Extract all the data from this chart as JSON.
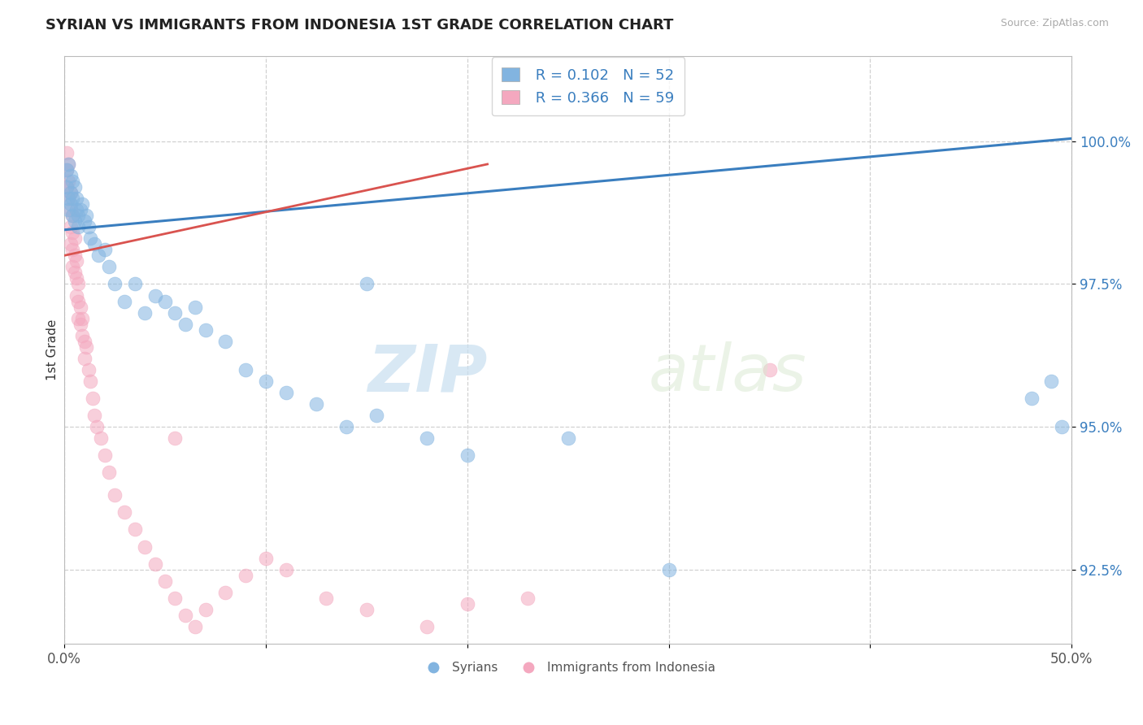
{
  "title": "SYRIAN VS IMMIGRANTS FROM INDONESIA 1ST GRADE CORRELATION CHART",
  "source": "Source: ZipAtlas.com",
  "ylabel": "1st Grade",
  "xlim": [
    0.0,
    0.5
  ],
  "ylim": [
    91.2,
    101.5
  ],
  "yticks": [
    92.5,
    95.0,
    97.5,
    100.0
  ],
  "ytick_labels": [
    "92.5%",
    "95.0%",
    "97.5%",
    "100.0%"
  ],
  "xticks": [
    0.0,
    0.1,
    0.2,
    0.3,
    0.4,
    0.5
  ],
  "xtick_labels": [
    "0.0%",
    "",
    "",
    "",
    "",
    "50.0%"
  ],
  "legend_R1": "R = 0.102",
  "legend_N1": "N = 52",
  "legend_R2": "R = 0.366",
  "legend_N2": "N = 59",
  "color_blue": "#82b4e0",
  "color_pink": "#f4a8bf",
  "color_line_blue": "#3a7ebf",
  "color_line_pink": "#d9534f",
  "watermark_zip": "ZIP",
  "watermark_atlas": "atlas",
  "syrians_x": [
    0.001,
    0.001,
    0.002,
    0.002,
    0.002,
    0.003,
    0.003,
    0.003,
    0.004,
    0.004,
    0.004,
    0.005,
    0.005,
    0.006,
    0.006,
    0.007,
    0.007,
    0.008,
    0.009,
    0.01,
    0.011,
    0.012,
    0.013,
    0.015,
    0.017,
    0.02,
    0.022,
    0.025,
    0.03,
    0.035,
    0.04,
    0.045,
    0.05,
    0.055,
    0.06,
    0.065,
    0.07,
    0.08,
    0.09,
    0.1,
    0.11,
    0.125,
    0.14,
    0.155,
    0.18,
    0.2,
    0.15,
    0.48,
    0.49,
    0.495,
    0.25,
    0.3
  ],
  "syrians_y": [
    99.5,
    99.2,
    99.6,
    99.0,
    98.8,
    99.4,
    98.9,
    99.1,
    99.3,
    98.7,
    99.0,
    98.6,
    99.2,
    98.8,
    99.0,
    98.5,
    98.7,
    98.8,
    98.9,
    98.6,
    98.7,
    98.5,
    98.3,
    98.2,
    98.0,
    98.1,
    97.8,
    97.5,
    97.2,
    97.5,
    97.0,
    97.3,
    97.2,
    97.0,
    96.8,
    97.1,
    96.7,
    96.5,
    96.0,
    95.8,
    95.6,
    95.4,
    95.0,
    95.2,
    94.8,
    94.5,
    97.5,
    95.5,
    95.8,
    95.0,
    94.8,
    92.5
  ],
  "indonesia_x": [
    0.001,
    0.001,
    0.001,
    0.002,
    0.002,
    0.002,
    0.003,
    0.003,
    0.003,
    0.003,
    0.004,
    0.004,
    0.004,
    0.004,
    0.005,
    0.005,
    0.005,
    0.006,
    0.006,
    0.006,
    0.007,
    0.007,
    0.007,
    0.008,
    0.008,
    0.009,
    0.009,
    0.01,
    0.01,
    0.011,
    0.012,
    0.013,
    0.014,
    0.015,
    0.016,
    0.018,
    0.02,
    0.022,
    0.025,
    0.03,
    0.035,
    0.04,
    0.045,
    0.05,
    0.055,
    0.06,
    0.065,
    0.07,
    0.08,
    0.09,
    0.1,
    0.11,
    0.13,
    0.15,
    0.18,
    0.2,
    0.23,
    0.35,
    0.055
  ],
  "indonesia_y": [
    99.8,
    99.5,
    99.2,
    99.6,
    99.3,
    99.0,
    99.1,
    98.8,
    98.5,
    98.2,
    98.7,
    98.4,
    98.1,
    97.8,
    98.3,
    98.0,
    97.7,
    97.9,
    97.6,
    97.3,
    97.5,
    97.2,
    96.9,
    97.1,
    96.8,
    96.9,
    96.6,
    96.5,
    96.2,
    96.4,
    96.0,
    95.8,
    95.5,
    95.2,
    95.0,
    94.8,
    94.5,
    94.2,
    93.8,
    93.5,
    93.2,
    92.9,
    92.6,
    92.3,
    92.0,
    91.7,
    91.5,
    91.8,
    92.1,
    92.4,
    92.7,
    92.5,
    92.0,
    91.8,
    91.5,
    91.9,
    92.0,
    96.0,
    94.8
  ],
  "blue_line_x": [
    0.0,
    0.5
  ],
  "blue_line_y": [
    98.45,
    100.05
  ],
  "pink_line_x": [
    0.0,
    0.21
  ],
  "pink_line_y": [
    98.0,
    99.6
  ]
}
